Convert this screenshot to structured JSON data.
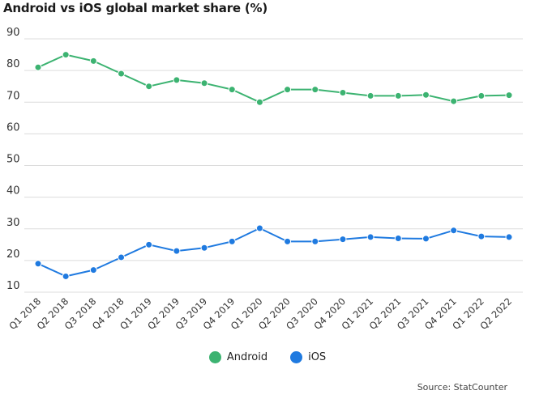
{
  "chart_data": {
    "type": "line",
    "title": "Android vs iOS global market share (%)",
    "categories": [
      "Q1 2018",
      "Q2 2018",
      "Q3 2018",
      "Q4 2018",
      "Q1 2019",
      "Q2 2019",
      "Q3 2019",
      "Q4 2019",
      "Q1 2020",
      "Q2 2020",
      "Q3 2020",
      "Q4 2020",
      "Q1 2021",
      "Q2 2021",
      "Q3 2021",
      "Q4 2021",
      "Q1 2022",
      "Q2 2022"
    ],
    "series": [
      {
        "name": "Android",
        "color": "#3cb371",
        "values": [
          81,
          85,
          83,
          79,
          75,
          77,
          76,
          74,
          70,
          74,
          74,
          73,
          72,
          72,
          72.3,
          70.3,
          72,
          72.2
        ]
      },
      {
        "name": "iOS",
        "color": "#1f7ae0",
        "values": [
          19,
          15,
          17,
          21,
          25,
          23,
          24,
          26,
          30.2,
          26,
          26,
          26.7,
          27.4,
          27,
          26.9,
          29.5,
          27.6,
          27.4
        ]
      }
    ],
    "ylim": [
      10,
      90
    ],
    "yticks": [
      10,
      20,
      30,
      40,
      50,
      60,
      70,
      80,
      90
    ],
    "grid": true,
    "legend_position": "bottom-center",
    "source": "Source: StatCounter"
  }
}
